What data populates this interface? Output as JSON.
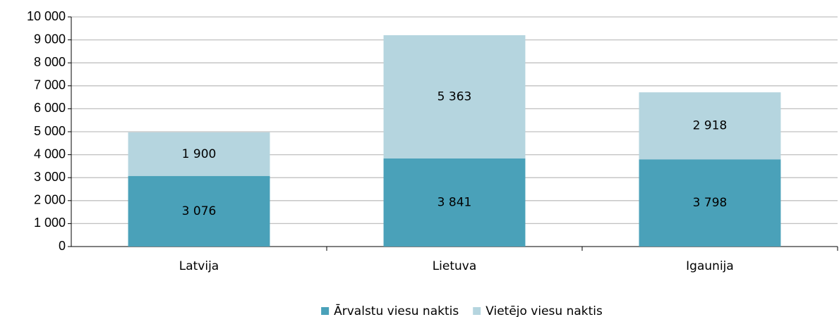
{
  "chart_data": {
    "type": "stacked_bar",
    "categories": [
      "Latvija",
      "Lietuva",
      "Igaunija"
    ],
    "series": [
      {
        "name": "Ārvalstu viesu naktis",
        "color": "#4aa1b9",
        "values": [
          3076,
          3841,
          3798
        ],
        "value_labels": [
          "3 076",
          "3 841",
          "3 798"
        ]
      },
      {
        "name": "Vietējo viesu naktis",
        "color": "#b5d5df",
        "values": [
          1900,
          5363,
          2918
        ],
        "value_labels": [
          "1 900",
          "5 363",
          "2 918"
        ]
      }
    ],
    "ylim": [
      0,
      10000
    ],
    "yticks": [
      0,
      {
        "value": 1000,
        "label": "1 000"
      },
      {
        "value": 2000,
        "label": "2 000"
      },
      {
        "value": 3000,
        "label": "3 000"
      },
      {
        "value": 4000,
        "label": "4 000"
      },
      {
        "value": 5000,
        "label": "5 000"
      },
      {
        "value": 6000,
        "label": "6 000"
      },
      {
        "value": 7000,
        "label": "7 000"
      },
      {
        "value": 8000,
        "label": "8 000"
      },
      {
        "value": 9000,
        "label": "9 000"
      },
      {
        "value": 10000,
        "label": "10 000"
      }
    ],
    "grid": true,
    "legend": "bottom"
  }
}
